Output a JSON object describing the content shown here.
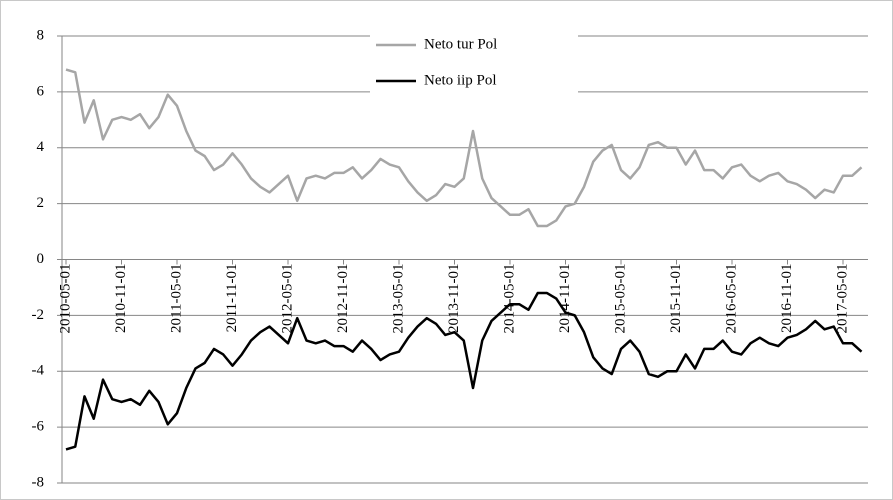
{
  "chart_data": {
    "type": "line",
    "categories": [
      "2010-05-01",
      null,
      null,
      null,
      null,
      null,
      "2010-11-01",
      null,
      null,
      null,
      null,
      null,
      "2011-05-01",
      null,
      null,
      null,
      null,
      null,
      "2011-11-01",
      null,
      null,
      null,
      null,
      null,
      "2012-05-01",
      null,
      null,
      null,
      null,
      null,
      "2012-11-01",
      null,
      null,
      null,
      null,
      null,
      "2013-05-01",
      null,
      null,
      null,
      null,
      null,
      "2013-11-01",
      null,
      null,
      null,
      null,
      null,
      "2014-05-01",
      null,
      null,
      null,
      null,
      null,
      "2014-11-01",
      null,
      null,
      null,
      null,
      null,
      "2015-05-01",
      null,
      null,
      null,
      null,
      null,
      "2015-11-01",
      null,
      null,
      null,
      null,
      null,
      "2016-05-01",
      null,
      null,
      null,
      null,
      null,
      "2016-11-01",
      null,
      null,
      null,
      null,
      null,
      "2017-05-01",
      null,
      null
    ],
    "series": [
      {
        "name": "Neto tur Pol",
        "color": "#a6a6a6",
        "values": [
          6.8,
          6.7,
          4.9,
          5.7,
          4.3,
          5.0,
          5.1,
          5.0,
          5.2,
          4.7,
          5.1,
          5.9,
          5.5,
          4.6,
          3.9,
          3.7,
          3.2,
          3.4,
          3.8,
          3.4,
          2.9,
          2.6,
          2.4,
          2.7,
          3.0,
          2.1,
          2.9,
          3.0,
          2.9,
          3.1,
          3.1,
          3.3,
          2.9,
          3.2,
          3.6,
          3.4,
          3.3,
          2.8,
          2.4,
          2.1,
          2.3,
          2.7,
          2.6,
          2.9,
          4.6,
          2.9,
          2.2,
          1.9,
          1.6,
          1.6,
          1.8,
          1.2,
          1.2,
          1.4,
          1.9,
          2.0,
          2.6,
          3.5,
          3.9,
          4.1,
          3.2,
          2.9,
          3.3,
          4.1,
          4.2,
          4.0,
          4.0,
          3.4,
          3.9,
          3.2,
          3.2,
          2.9,
          3.3,
          3.4,
          3.0,
          2.8,
          3.0,
          3.1,
          2.8,
          2.7,
          2.5,
          2.2,
          2.5,
          2.4,
          3.0,
          3.0,
          3.3
        ]
      },
      {
        "name": "Neto iip Pol",
        "color": "#000000",
        "values": [
          -6.8,
          -6.7,
          -4.9,
          -5.7,
          -4.3,
          -5.0,
          -5.1,
          -5.0,
          -5.2,
          -4.7,
          -5.1,
          -5.9,
          -5.5,
          -4.6,
          -3.9,
          -3.7,
          -3.2,
          -3.4,
          -3.8,
          -3.4,
          -2.9,
          -2.6,
          -2.4,
          -2.7,
          -3.0,
          -2.1,
          -2.9,
          -3.0,
          -2.9,
          -3.1,
          -3.1,
          -3.3,
          -2.9,
          -3.2,
          -3.6,
          -3.4,
          -3.3,
          -2.8,
          -2.4,
          -2.1,
          -2.3,
          -2.7,
          -2.6,
          -2.9,
          -4.6,
          -2.9,
          -2.2,
          -1.9,
          -1.6,
          -1.6,
          -1.8,
          -1.2,
          -1.2,
          -1.4,
          -1.9,
          -2.0,
          -2.6,
          -3.5,
          -3.9,
          -4.1,
          -3.2,
          -2.9,
          -3.3,
          -4.1,
          -4.2,
          -4.0,
          -4.0,
          -3.4,
          -3.9,
          -3.2,
          -3.2,
          -2.9,
          -3.3,
          -3.4,
          -3.0,
          -2.8,
          -3.0,
          -3.1,
          -2.8,
          -2.7,
          -2.5,
          -2.2,
          -2.5,
          -2.4,
          -3.0,
          -3.0,
          -3.3
        ]
      }
    ],
    "ylim": [
      -8,
      8
    ],
    "yticks": [
      -8,
      -6,
      -4,
      -2,
      0,
      2,
      4,
      6,
      8
    ],
    "grid": true
  }
}
